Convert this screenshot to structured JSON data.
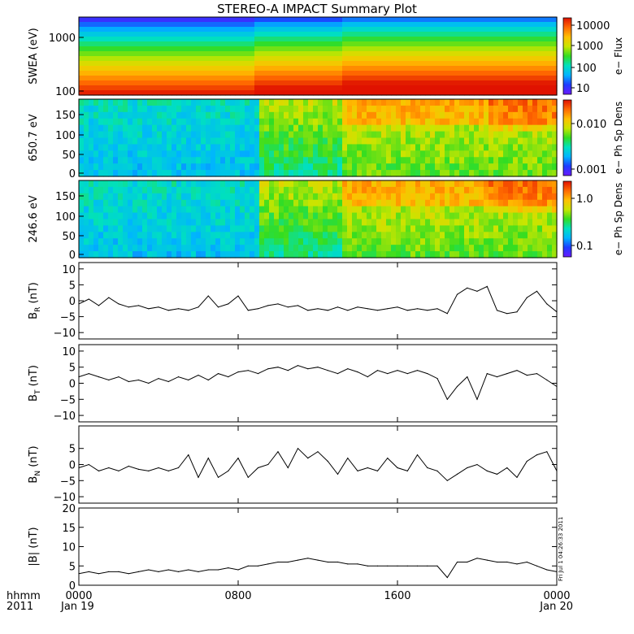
{
  "title": "STEREO-A IMPACT Summary Plot",
  "corner": {
    "line1": "hhmm",
    "line2": "2011"
  },
  "x_axis": {
    "ticks": [
      "0000",
      "0800",
      "1600",
      "0000"
    ],
    "tick_hours": [
      0,
      8,
      16,
      24
    ],
    "dates": [
      "Jan 19",
      "Jan 20"
    ],
    "range_hours": [
      0,
      24
    ]
  },
  "timestamp": "Fri Jul 1 04:26:33 2011",
  "spectrograms": [
    {
      "ylabel": "SWEA (eV)",
      "yticks": [
        "1000",
        "100"
      ],
      "colorbar_label": "e− Flux",
      "colorbar_ticks": [
        "10000",
        "1000",
        "100",
        "10"
      ]
    },
    {
      "ylabel": "650.7 eV",
      "yticks": [
        "150",
        "100",
        "50",
        "0"
      ],
      "colorbar_label": "e− Ph Sp Dens",
      "colorbar_ticks": [
        "0.010",
        "0.001"
      ]
    },
    {
      "ylabel": "246.6 eV",
      "yticks": [
        "150",
        "100",
        "50",
        "0"
      ],
      "colorbar_label": "e− Ph Sp Dens",
      "colorbar_ticks": [
        "1.0",
        "0.1"
      ]
    }
  ],
  "colors": {
    "colormap": [
      "#6a1aff",
      "#1e3cff",
      "#00b4ff",
      "#00e0c0",
      "#33dd22",
      "#c8e600",
      "#ffc000",
      "#ff6a00",
      "#e01200"
    ]
  },
  "chart_data": [
    {
      "type": "line",
      "ylabel_main": "B",
      "ylabel_sub": "R",
      "ylabel_unit": " (nT)",
      "ylim": [
        -12,
        12
      ],
      "yticks": [
        "10",
        "5",
        "0",
        "−5",
        "−10"
      ],
      "ytick_values": [
        10,
        5,
        0,
        -5,
        -10
      ],
      "x": [
        0,
        0.5,
        1,
        1.5,
        2,
        2.5,
        3,
        3.5,
        4,
        4.5,
        5,
        5.5,
        6,
        6.5,
        7,
        7.5,
        8,
        8.5,
        9,
        9.5,
        10,
        10.5,
        11,
        11.5,
        12,
        12.5,
        13,
        13.5,
        14,
        14.5,
        15,
        15.5,
        16,
        16.5,
        17,
        17.5,
        18,
        18.5,
        19,
        19.5,
        20,
        20.5,
        21,
        21.5,
        22,
        22.5,
        23,
        23.5,
        24
      ],
      "y": [
        -1,
        0.5,
        -1.5,
        1,
        -1,
        -2,
        -1.5,
        -2.5,
        -2,
        -3,
        -2.5,
        -3,
        -2,
        1.5,
        -2,
        -1,
        1.5,
        -3,
        -2.5,
        -1.5,
        -1,
        -2,
        -1.5,
        -3,
        -2.5,
        -3,
        -2,
        -3,
        -2,
        -2.5,
        -3,
        -2.5,
        -2,
        -3,
        -2.5,
        -3,
        -2.5,
        -4,
        2,
        4,
        3,
        4.5,
        -3,
        -4,
        -3.5,
        1,
        3,
        -1,
        -3.5
      ]
    },
    {
      "type": "line",
      "ylabel_main": "B",
      "ylabel_sub": "T",
      "ylabel_unit": " (nT)",
      "ylim": [
        -12,
        12
      ],
      "yticks": [
        "10",
        "5",
        "0",
        "−5",
        "−10"
      ],
      "ytick_values": [
        10,
        5,
        0,
        -5,
        -10
      ],
      "x": [
        0,
        0.5,
        1,
        1.5,
        2,
        2.5,
        3,
        3.5,
        4,
        4.5,
        5,
        5.5,
        6,
        6.5,
        7,
        7.5,
        8,
        8.5,
        9,
        9.5,
        10,
        10.5,
        11,
        11.5,
        12,
        12.5,
        13,
        13.5,
        14,
        14.5,
        15,
        15.5,
        16,
        16.5,
        17,
        17.5,
        18,
        18.5,
        19,
        19.5,
        20,
        20.5,
        21,
        21.5,
        22,
        22.5,
        23,
        23.5,
        24
      ],
      "y": [
        2,
        3,
        2,
        1,
        2,
        0.5,
        1,
        0,
        1.5,
        0.5,
        2,
        1,
        2.5,
        1,
        3,
        2,
        3.5,
        4,
        3,
        4.5,
        5,
        4,
        5.5,
        4.5,
        5,
        4,
        3,
        4.5,
        3.5,
        2,
        4,
        3,
        4,
        3,
        4,
        3,
        1.5,
        -5,
        -1,
        2,
        -5,
        3,
        2,
        3,
        4,
        2.5,
        3,
        1,
        -1
      ]
    },
    {
      "type": "line",
      "ylabel_main": "B",
      "ylabel_sub": "N",
      "ylabel_unit": " (nT)",
      "ylim": [
        -12,
        12
      ],
      "yticks": [
        "5",
        "0",
        "−5",
        "−10"
      ],
      "ytick_values": [
        5,
        0,
        -5,
        -10
      ],
      "x": [
        0,
        0.5,
        1,
        1.5,
        2,
        2.5,
        3,
        3.5,
        4,
        4.5,
        5,
        5.5,
        6,
        6.5,
        7,
        7.5,
        8,
        8.5,
        9,
        9.5,
        10,
        10.5,
        11,
        11.5,
        12,
        12.5,
        13,
        13.5,
        14,
        14.5,
        15,
        15.5,
        16,
        16.5,
        17,
        17.5,
        18,
        18.5,
        19,
        19.5,
        20,
        20.5,
        21,
        21.5,
        22,
        22.5,
        23,
        23.5,
        24
      ],
      "y": [
        -1,
        0,
        -2,
        -1,
        -2,
        -0.5,
        -1.5,
        -2,
        -1,
        -2,
        -1,
        3,
        -4,
        2,
        -4,
        -2,
        2,
        -4,
        -1,
        0,
        4,
        -1,
        5,
        2,
        4,
        1,
        -3,
        2,
        -2,
        -1,
        -2,
        2,
        -1,
        -2,
        3,
        -1,
        -2,
        -5,
        -3,
        -1,
        0,
        -2,
        -3,
        -1,
        -4,
        1,
        3,
        4,
        -2
      ]
    },
    {
      "type": "line",
      "ylabel_main": "|B|",
      "ylabel_sub": "",
      "ylabel_unit": " (nT)",
      "ylim": [
        0,
        20
      ],
      "yticks": [
        "20",
        "15",
        "10",
        "5",
        "0"
      ],
      "ytick_values": [
        20,
        15,
        10,
        5,
        0
      ],
      "x": [
        0,
        0.5,
        1,
        1.5,
        2,
        2.5,
        3,
        3.5,
        4,
        4.5,
        5,
        5.5,
        6,
        6.5,
        7,
        7.5,
        8,
        8.5,
        9,
        9.5,
        10,
        10.5,
        11,
        11.5,
        12,
        12.5,
        13,
        13.5,
        14,
        14.5,
        15,
        15.5,
        16,
        16.5,
        17,
        17.5,
        18,
        18.5,
        19,
        19.5,
        20,
        20.5,
        21,
        21.5,
        22,
        22.5,
        23,
        23.5,
        24
      ],
      "y": [
        3,
        3.5,
        3,
        3.5,
        3.5,
        3,
        3.5,
        4,
        3.5,
        4,
        3.5,
        4,
        3.5,
        4,
        4,
        4.5,
        4,
        5,
        5,
        5.5,
        6,
        6,
        6.5,
        7,
        6.5,
        6,
        6,
        5.5,
        5.5,
        5,
        5,
        5,
        5,
        5,
        5,
        5,
        5,
        2,
        6,
        6,
        7,
        6.5,
        6,
        6,
        5.5,
        6,
        5,
        4,
        3.5
      ]
    }
  ]
}
